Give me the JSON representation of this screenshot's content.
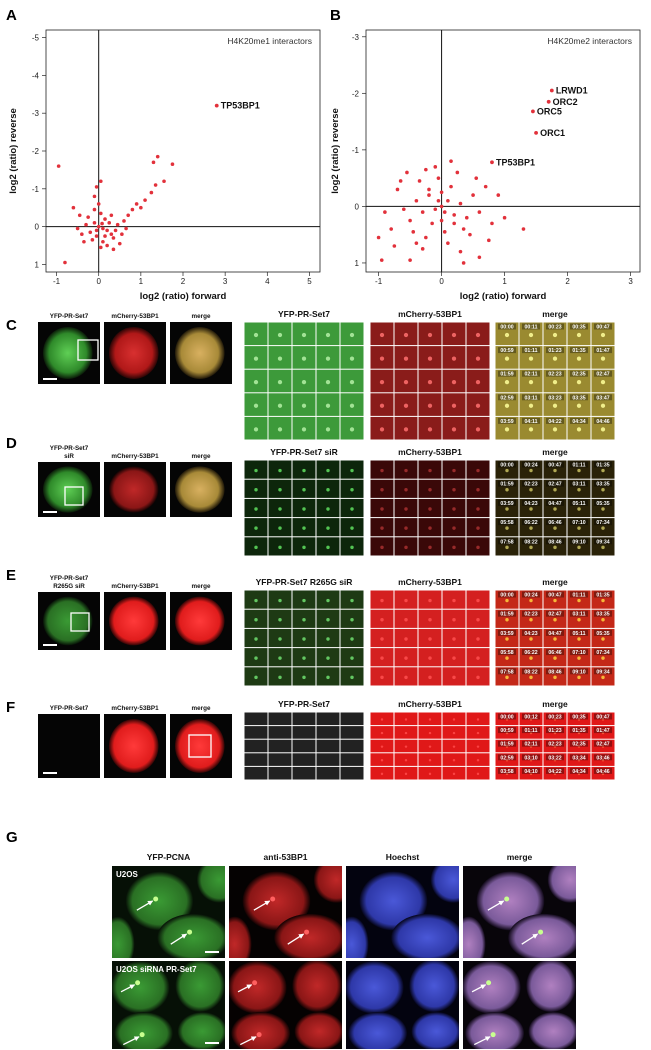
{
  "panel_labels": [
    "A",
    "B",
    "C",
    "D",
    "E",
    "F",
    "G"
  ],
  "chart_data": [
    {
      "type": "scatter",
      "title": "H4K20me1 interactors",
      "x_label": "log2 (ratio) forward",
      "y_label": "log2 (ratio) reverse",
      "xlim": [
        -1.25,
        5.25
      ],
      "ylim": [
        -5.2,
        1.2
      ],
      "y_reversed": true,
      "xticks": [
        -1,
        0,
        1,
        2,
        3,
        4,
        5
      ],
      "yticks": [
        -5,
        -4,
        -3,
        -2,
        -1,
        0,
        1
      ],
      "color": "#e2313b",
      "x": [
        0,
        0.1,
        -0.1,
        0.2,
        -0.2,
        0.15,
        -0.05,
        0.3,
        -0.3,
        0.05,
        0.25,
        -0.15,
        0.4,
        -0.4,
        0.1,
        0.35,
        -0.25,
        0.45,
        0.2,
        -0.1,
        0,
        0.05,
        -0.5,
        0.55,
        0.3,
        -0.35,
        0.6,
        0.15,
        -0.05,
        0.08,
        0.7,
        0.8,
        0.9,
        1.0,
        1.1,
        1.25,
        1.35,
        1.4,
        1.3,
        1.55,
        1.75,
        -0.05,
        0.05,
        -0.1,
        -0.95,
        -0.8,
        -0.6,
        0.5,
        -0.45,
        0.35,
        0.65
      ],
      "values": [
        0,
        0.05,
        -0.1,
        0.1,
        0.15,
        -0.2,
        0.25,
        0.2,
        -0.05,
        -0.35,
        -0.1,
        0.35,
        0.1,
        0.2,
        0.4,
        0.3,
        -0.25,
        -0.05,
        0.5,
        -0.45,
        -0.6,
        0.55,
        0.05,
        0.2,
        -0.3,
        0.4,
        -0.15,
        0.25,
        0.1,
        -0.08,
        -0.3,
        -0.45,
        -0.6,
        -0.5,
        -0.7,
        -0.9,
        -1.1,
        -1.85,
        -1.7,
        -1.2,
        -1.65,
        -1.05,
        -1.2,
        -0.8,
        -1.6,
        0.95,
        -0.5,
        0.45,
        -0.3,
        0.6,
        0.05
      ],
      "annotations": [
        {
          "text": "TP53BP1",
          "x": 2.8,
          "y": -3.2
        }
      ]
    },
    {
      "type": "scatter",
      "title": "H4K20me2 interactors",
      "x_label": "log2 (ratio) forward",
      "y_label": "log2 (ratio) reverse",
      "xlim": [
        -1.2,
        3.15
      ],
      "ylim": [
        -3.12,
        1.16
      ],
      "y_reversed": true,
      "xticks": [
        -1,
        0,
        1,
        2,
        3
      ],
      "yticks": [
        -3,
        -2,
        -1,
        0,
        1
      ],
      "color": "#e2313b",
      "x": [
        0,
        -0.1,
        0.1,
        -0.2,
        0.2,
        -0.3,
        0.3,
        -0.15,
        0.15,
        -0.4,
        0.4,
        -0.05,
        0.05,
        -0.5,
        0.5,
        -0.35,
        0.35,
        -0.6,
        0.6,
        -0.25,
        0.25,
        -0.1,
        0.1,
        -0.7,
        0.7,
        -0.45,
        0.45,
        -0.2,
        0.2,
        0,
        0,
        -0.8,
        0.8,
        -0.55,
        0.55,
        -0.3,
        0.3,
        -0.9,
        1.0,
        1.3,
        -1.0,
        -0.95,
        -0.5,
        0.35,
        0.6,
        -0.75,
        0.9,
        -0.65,
        0.15,
        -0.25,
        0.05,
        -0.05,
        0.75,
        -0.4
      ],
      "values": [
        0,
        0.05,
        -0.1,
        -0.2,
        0.15,
        0.1,
        -0.05,
        0.3,
        -0.35,
        -0.1,
        0.2,
        -0.5,
        0.45,
        0.25,
        -0.2,
        -0.45,
        0.4,
        0.05,
        0.1,
        0.55,
        -0.6,
        -0.7,
        0.65,
        -0.3,
        -0.35,
        0.45,
        0.5,
        -0.3,
        0.3,
        0.25,
        -0.25,
        0.4,
        0.3,
        -0.6,
        -0.5,
        0.75,
        0.8,
        0.1,
        0.2,
        0.4,
        0.55,
        0.95,
        0.95,
        1.0,
        0.9,
        0.7,
        -0.2,
        -0.45,
        -0.8,
        -0.65,
        0.1,
        -0.1,
        0.6,
        0.65
      ],
      "annotations": [
        {
          "text": "LRWD1",
          "x": 1.75,
          "y": -2.05
        },
        {
          "text": "ORC2",
          "x": 1.7,
          "y": -1.85
        },
        {
          "text": "ORC5",
          "x": 1.45,
          "y": -1.68
        },
        {
          "text": "ORC1",
          "x": 1.5,
          "y": -1.3
        },
        {
          "text": "TP53BP1",
          "x": 0.8,
          "y": -0.78
        }
      ]
    }
  ],
  "timelapse": [
    {
      "small_label_lines": [
        "YFP-PR-Set7"
      ],
      "small_headers": [
        "mCherry-53BP1",
        "merge"
      ],
      "grid_headers": [
        "YFP-PR-Set7",
        "mCherry-53BP1",
        "merge"
      ],
      "timestamps": [
        "00:00",
        "00:11",
        "00:23",
        "00:35",
        "00:47",
        "00:59",
        "01:11",
        "01:23",
        "01:35",
        "01:47",
        "01:59",
        "02:11",
        "02:23",
        "02:35",
        "02:47",
        "02:59",
        "03:11",
        "03:23",
        "03:35",
        "03:47",
        "03:59",
        "04:11",
        "04:22",
        "04:34",
        "04:46"
      ]
    },
    {
      "small_label_lines": [
        "YFP-PR-Set7",
        "siR"
      ],
      "small_headers": [
        "mCherry-53BP1",
        "merge"
      ],
      "grid_headers": [
        "YFP-PR-Set7 siR",
        "mCherry-53BP1",
        "merge"
      ],
      "timestamps": [
        "00:00",
        "00:24",
        "00:47",
        "01:11",
        "01:35",
        "01:59",
        "02:23",
        "02:47",
        "03:11",
        "03:35",
        "03:59",
        "04:23",
        "04:47",
        "05:11",
        "05:35",
        "05:58",
        "06:22",
        "06:46",
        "07:10",
        "07:34",
        "07:58",
        "08:22",
        "08:46",
        "09:10",
        "09:34"
      ]
    },
    {
      "small_label_lines": [
        "YFP-PR-Set7",
        "R265G siR"
      ],
      "small_headers": [
        "mCherry-53BP1",
        "merge"
      ],
      "grid_headers": [
        "YFP-PR-Set7 R265G siR",
        "mCherry-53BP1",
        "merge"
      ],
      "timestamps": [
        "00:00",
        "00:24",
        "00:47",
        "01:11",
        "01:35",
        "01:59",
        "02:23",
        "02:47",
        "03:11",
        "03:35",
        "03:59",
        "04:23",
        "04:47",
        "05:11",
        "05:35",
        "05:58",
        "06:22",
        "06:46",
        "07:10",
        "07:34",
        "07:58",
        "08:22",
        "08:46",
        "09:10",
        "09:34"
      ]
    },
    {
      "small_label_lines": [
        "YFP-PR-Set7"
      ],
      "small_headers": [
        "mCherry-53BP1",
        "merge"
      ],
      "grid_headers": [
        "YFP-PR-Set7",
        "mCherry-53BP1",
        "merge"
      ],
      "timestamps": [
        "00:00",
        "00:12",
        "00:23",
        "00:35",
        "00:47",
        "00:59",
        "01:11",
        "01:23",
        "01:35",
        "01:47",
        "01:59",
        "02:11",
        "02:23",
        "02:35",
        "02:47",
        "02:59",
        "03:10",
        "03:22",
        "03:34",
        "03:46",
        "03:58",
        "04:10",
        "04:22",
        "04:34",
        "04:46"
      ]
    }
  ],
  "panel_g": {
    "column_headers": [
      "YFP-PCNA",
      "anti-53BP1",
      "Hoechst",
      "merge"
    ],
    "row_labels": [
      "U2OS",
      "U2OS siRNA PR-Set7"
    ]
  }
}
